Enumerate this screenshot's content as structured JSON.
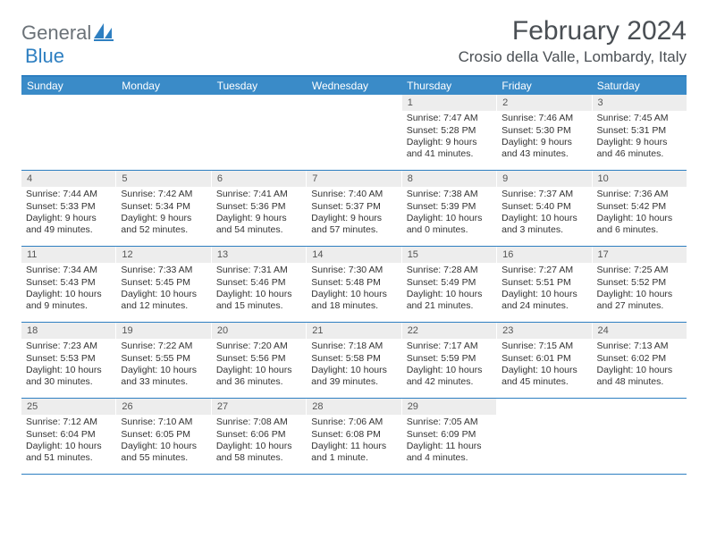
{
  "logo": {
    "general": "General",
    "blue": "Blue",
    "icon_color": "#2e7fc1"
  },
  "title": "February 2024",
  "location": "Crosio della Valle, Lombardy, Italy",
  "weekdays": [
    "Sunday",
    "Monday",
    "Tuesday",
    "Wednesday",
    "Thursday",
    "Friday",
    "Saturday"
  ],
  "colors": {
    "header_bar": "#3a8bc8",
    "border": "#2e7fc1",
    "daynum_bg": "#ededed",
    "text": "#333333",
    "title": "#4a4f54"
  },
  "weeks": [
    [
      {
        "n": "",
        "sr": "",
        "ss": "",
        "dl": ""
      },
      {
        "n": "",
        "sr": "",
        "ss": "",
        "dl": ""
      },
      {
        "n": "",
        "sr": "",
        "ss": "",
        "dl": ""
      },
      {
        "n": "",
        "sr": "",
        "ss": "",
        "dl": ""
      },
      {
        "n": "1",
        "sr": "Sunrise: 7:47 AM",
        "ss": "Sunset: 5:28 PM",
        "dl": "Daylight: 9 hours and 41 minutes."
      },
      {
        "n": "2",
        "sr": "Sunrise: 7:46 AM",
        "ss": "Sunset: 5:30 PM",
        "dl": "Daylight: 9 hours and 43 minutes."
      },
      {
        "n": "3",
        "sr": "Sunrise: 7:45 AM",
        "ss": "Sunset: 5:31 PM",
        "dl": "Daylight: 9 hours and 46 minutes."
      }
    ],
    [
      {
        "n": "4",
        "sr": "Sunrise: 7:44 AM",
        "ss": "Sunset: 5:33 PM",
        "dl": "Daylight: 9 hours and 49 minutes."
      },
      {
        "n": "5",
        "sr": "Sunrise: 7:42 AM",
        "ss": "Sunset: 5:34 PM",
        "dl": "Daylight: 9 hours and 52 minutes."
      },
      {
        "n": "6",
        "sr": "Sunrise: 7:41 AM",
        "ss": "Sunset: 5:36 PM",
        "dl": "Daylight: 9 hours and 54 minutes."
      },
      {
        "n": "7",
        "sr": "Sunrise: 7:40 AM",
        "ss": "Sunset: 5:37 PM",
        "dl": "Daylight: 9 hours and 57 minutes."
      },
      {
        "n": "8",
        "sr": "Sunrise: 7:38 AM",
        "ss": "Sunset: 5:39 PM",
        "dl": "Daylight: 10 hours and 0 minutes."
      },
      {
        "n": "9",
        "sr": "Sunrise: 7:37 AM",
        "ss": "Sunset: 5:40 PM",
        "dl": "Daylight: 10 hours and 3 minutes."
      },
      {
        "n": "10",
        "sr": "Sunrise: 7:36 AM",
        "ss": "Sunset: 5:42 PM",
        "dl": "Daylight: 10 hours and 6 minutes."
      }
    ],
    [
      {
        "n": "11",
        "sr": "Sunrise: 7:34 AM",
        "ss": "Sunset: 5:43 PM",
        "dl": "Daylight: 10 hours and 9 minutes."
      },
      {
        "n": "12",
        "sr": "Sunrise: 7:33 AM",
        "ss": "Sunset: 5:45 PM",
        "dl": "Daylight: 10 hours and 12 minutes."
      },
      {
        "n": "13",
        "sr": "Sunrise: 7:31 AM",
        "ss": "Sunset: 5:46 PM",
        "dl": "Daylight: 10 hours and 15 minutes."
      },
      {
        "n": "14",
        "sr": "Sunrise: 7:30 AM",
        "ss": "Sunset: 5:48 PM",
        "dl": "Daylight: 10 hours and 18 minutes."
      },
      {
        "n": "15",
        "sr": "Sunrise: 7:28 AM",
        "ss": "Sunset: 5:49 PM",
        "dl": "Daylight: 10 hours and 21 minutes."
      },
      {
        "n": "16",
        "sr": "Sunrise: 7:27 AM",
        "ss": "Sunset: 5:51 PM",
        "dl": "Daylight: 10 hours and 24 minutes."
      },
      {
        "n": "17",
        "sr": "Sunrise: 7:25 AM",
        "ss": "Sunset: 5:52 PM",
        "dl": "Daylight: 10 hours and 27 minutes."
      }
    ],
    [
      {
        "n": "18",
        "sr": "Sunrise: 7:23 AM",
        "ss": "Sunset: 5:53 PM",
        "dl": "Daylight: 10 hours and 30 minutes."
      },
      {
        "n": "19",
        "sr": "Sunrise: 7:22 AM",
        "ss": "Sunset: 5:55 PM",
        "dl": "Daylight: 10 hours and 33 minutes."
      },
      {
        "n": "20",
        "sr": "Sunrise: 7:20 AM",
        "ss": "Sunset: 5:56 PM",
        "dl": "Daylight: 10 hours and 36 minutes."
      },
      {
        "n": "21",
        "sr": "Sunrise: 7:18 AM",
        "ss": "Sunset: 5:58 PM",
        "dl": "Daylight: 10 hours and 39 minutes."
      },
      {
        "n": "22",
        "sr": "Sunrise: 7:17 AM",
        "ss": "Sunset: 5:59 PM",
        "dl": "Daylight: 10 hours and 42 minutes."
      },
      {
        "n": "23",
        "sr": "Sunrise: 7:15 AM",
        "ss": "Sunset: 6:01 PM",
        "dl": "Daylight: 10 hours and 45 minutes."
      },
      {
        "n": "24",
        "sr": "Sunrise: 7:13 AM",
        "ss": "Sunset: 6:02 PM",
        "dl": "Daylight: 10 hours and 48 minutes."
      }
    ],
    [
      {
        "n": "25",
        "sr": "Sunrise: 7:12 AM",
        "ss": "Sunset: 6:04 PM",
        "dl": "Daylight: 10 hours and 51 minutes."
      },
      {
        "n": "26",
        "sr": "Sunrise: 7:10 AM",
        "ss": "Sunset: 6:05 PM",
        "dl": "Daylight: 10 hours and 55 minutes."
      },
      {
        "n": "27",
        "sr": "Sunrise: 7:08 AM",
        "ss": "Sunset: 6:06 PM",
        "dl": "Daylight: 10 hours and 58 minutes."
      },
      {
        "n": "28",
        "sr": "Sunrise: 7:06 AM",
        "ss": "Sunset: 6:08 PM",
        "dl": "Daylight: 11 hours and 1 minute."
      },
      {
        "n": "29",
        "sr": "Sunrise: 7:05 AM",
        "ss": "Sunset: 6:09 PM",
        "dl": "Daylight: 11 hours and 4 minutes."
      },
      {
        "n": "",
        "sr": "",
        "ss": "",
        "dl": ""
      },
      {
        "n": "",
        "sr": "",
        "ss": "",
        "dl": ""
      }
    ]
  ]
}
